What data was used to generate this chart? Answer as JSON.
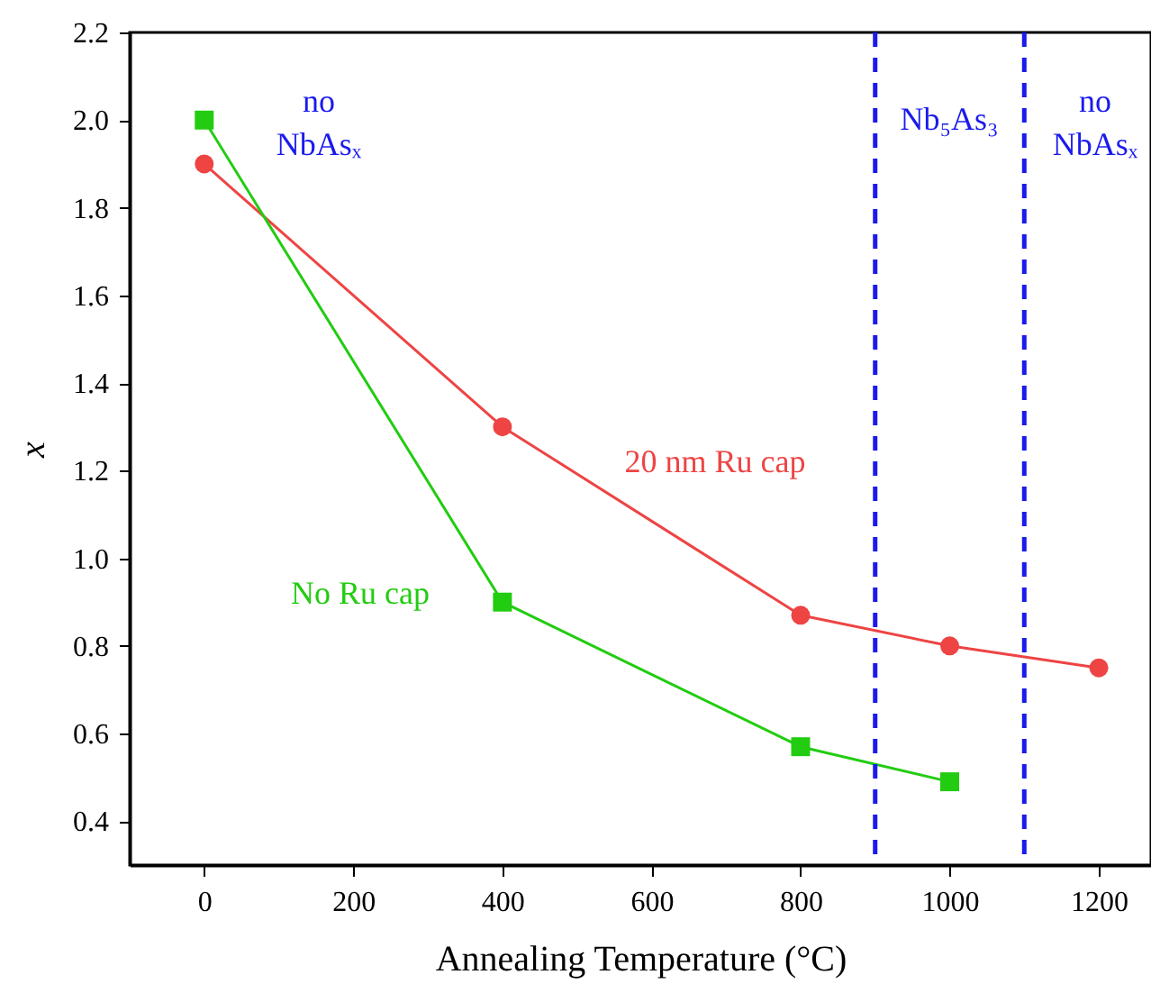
{
  "chart_data": {
    "type": "line",
    "xlabel": "Annealing Temperature (°C)",
    "ylabel": "x",
    "xlim": [
      -100,
      1270
    ],
    "ylim": [
      0.3,
      2.2
    ],
    "xticks": [
      0,
      200,
      400,
      600,
      800,
      1000,
      1200
    ],
    "yticks": [
      0.4,
      0.6,
      0.8,
      {
        "value": 1,
        "label": "1.0"
      },
      1.2,
      1.4,
      1.6,
      1.8,
      {
        "value": 2,
        "label": "2.0"
      },
      2.2
    ],
    "series": [
      {
        "name": "20 nm Ru cap",
        "color": "#ee4444",
        "marker": "circle",
        "x": [
          0,
          400,
          800,
          1000,
          1200
        ],
        "values": [
          1.9,
          1.3,
          0.87,
          0.8,
          0.75
        ]
      },
      {
        "name": "No Ru cap",
        "color": "#22cc11",
        "marker": "square",
        "x": [
          0,
          400,
          800,
          1000
        ],
        "values": [
          2.0,
          0.9,
          0.57,
          0.49
        ]
      }
    ],
    "ref_lines": [
      {
        "axis": "x",
        "value": 900,
        "color": "#1a1aee",
        "line_style": "dashed"
      },
      {
        "axis": "x",
        "value": 1100,
        "color": "#1a1aee",
        "line_style": "dashed"
      }
    ],
    "annotations": [
      "no\nNbAsₓ",
      "Nb₅As₃",
      "no\nNbAsₓ"
    ],
    "grid": false,
    "legend": false,
    "line_style": "solid"
  }
}
